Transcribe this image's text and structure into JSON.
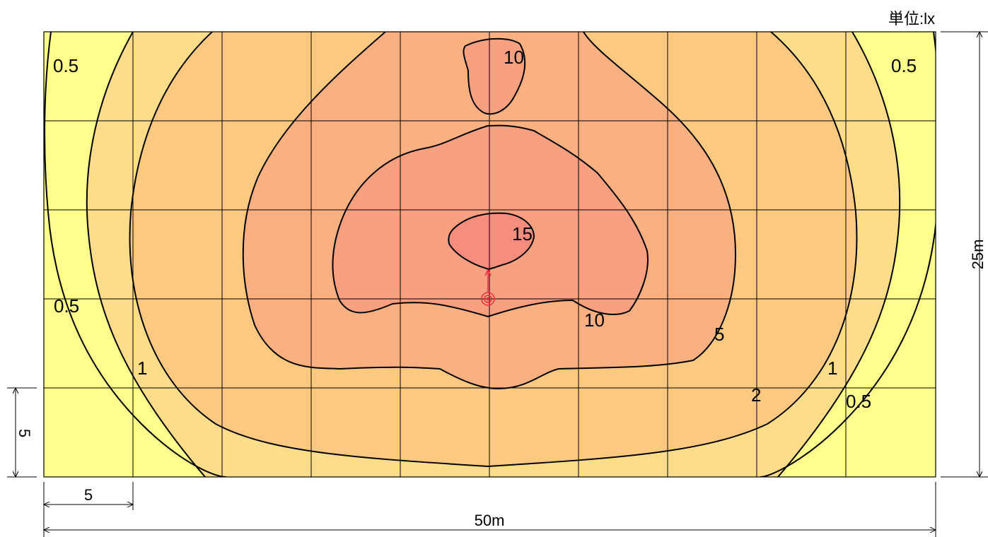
{
  "unit_label": "単位:lx",
  "dimensions": {
    "width_total": "50m",
    "height_total": "25m",
    "grid_width": "5",
    "grid_height": "5"
  },
  "grid": {
    "columns": 10,
    "rows": 5
  },
  "colors": {
    "band_below_1": "#FDFE8C",
    "band_1_2": "#FDDD8A",
    "band_2_5": "#FDC981",
    "band_5_10": "#FBB081",
    "band_10_15": "#F9A080",
    "band_above_15": "#F88D7D",
    "contour_line": "#000000",
    "light_fixture": "#E8303A"
  },
  "contour_levels": [
    {
      "id": "left-0.5-top",
      "text": "0.5"
    },
    {
      "id": "right-0.5-top",
      "text": "0.5"
    },
    {
      "id": "left-0.5-mid",
      "text": "0.5"
    },
    {
      "id": "right-0.5-bottom",
      "text": "0.5"
    },
    {
      "id": "left-1",
      "text": "1"
    },
    {
      "id": "right-1",
      "text": "1"
    },
    {
      "id": "2",
      "text": "2"
    },
    {
      "id": "5",
      "text": "5"
    },
    {
      "id": "10-top",
      "text": "10"
    },
    {
      "id": "10-mid",
      "text": "10"
    },
    {
      "id": "15",
      "text": "15"
    }
  ]
}
